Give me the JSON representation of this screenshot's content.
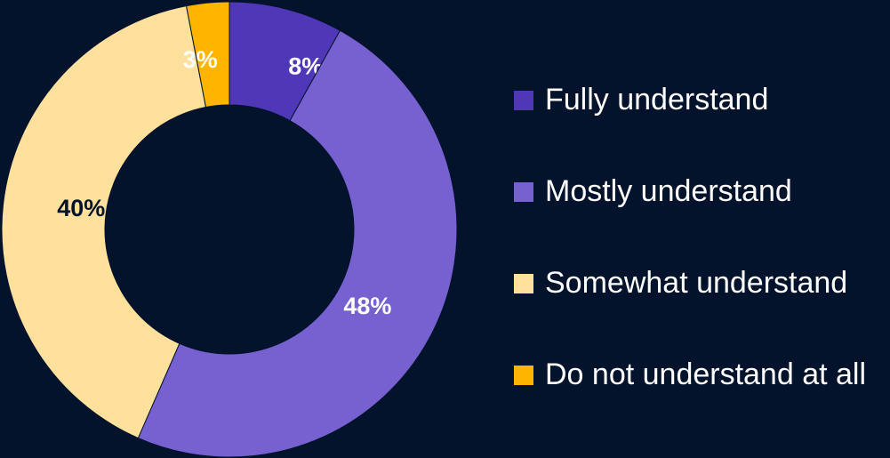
{
  "chart_data": {
    "type": "pie",
    "donut": true,
    "title": "",
    "legend_position": "right",
    "slices": [
      {
        "name": "Fully understand",
        "value": 8,
        "label": "8%",
        "color": "#4f37b8",
        "label_color": "#ffffff"
      },
      {
        "name": "Mostly understand",
        "value": 48,
        "label": "48%",
        "color": "#7761d0",
        "label_color": "#ffffff"
      },
      {
        "name": "Somewhat understand",
        "value": 40,
        "label": "40%",
        "color": "#ffe09c",
        "label_color": "#03132c"
      },
      {
        "name": "Do not understand at all",
        "value": 3,
        "label": "3%",
        "color": "#ffb500",
        "label_color": "#ffffff"
      }
    ]
  },
  "background_color": "#03132c"
}
